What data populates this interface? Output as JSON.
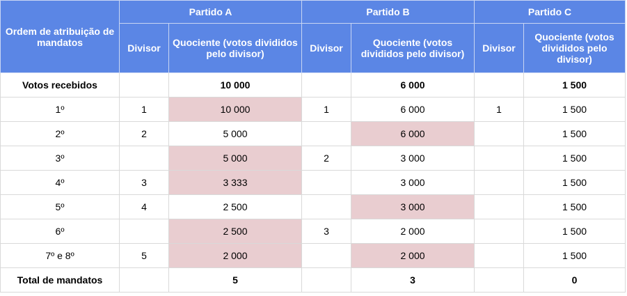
{
  "header": {
    "order_col": "Ordem de atribuição de mandatos",
    "party_a": "Partido A",
    "party_b": "Partido B",
    "party_c": "Partido C",
    "divisor_a": "Divisor",
    "divisor_b": "Divisor",
    "divisor_c": "Divisor",
    "quotient_a": "Quociente (votos divididos pelo divisor)",
    "quotient_b": "Quociente (votos divididos pelo divisor)",
    "quotient_c": "Quociente (votos divididos pelo divisor)"
  },
  "votes_row": {
    "label": "Votos recebidos",
    "a": "10 000",
    "b": "6 000",
    "c": "1 500"
  },
  "rows": [
    {
      "order": "1º",
      "div_a": "1",
      "q_a": "10 000",
      "div_b": "1",
      "q_b": "6 000",
      "div_c": "1",
      "q_c": "1 500"
    },
    {
      "order": "2º",
      "div_a": "2",
      "q_a": "5 000",
      "div_b": "",
      "q_b": "6 000",
      "div_c": "",
      "q_c": "1 500"
    },
    {
      "order": "3º",
      "div_a": "",
      "q_a": "5 000",
      "div_b": "2",
      "q_b": "3 000",
      "div_c": "",
      "q_c": "1 500"
    },
    {
      "order": "4º",
      "div_a": "3",
      "q_a": "3 333",
      "div_b": "",
      "q_b": "3 000",
      "div_c": "",
      "q_c": "1 500"
    },
    {
      "order": "5º",
      "div_a": "4",
      "q_a": "2 500",
      "div_b": "",
      "q_b": "3 000",
      "div_c": "",
      "q_c": "1 500"
    },
    {
      "order": "6º",
      "div_a": "",
      "q_a": "2 500",
      "div_b": "3",
      "q_b": "2 000",
      "div_c": "",
      "q_c": "1 500"
    },
    {
      "order": "7º e 8º",
      "div_a": "5",
      "q_a": "2 000",
      "div_b": "",
      "q_b": "2 000",
      "div_c": "",
      "q_c": "1 500"
    }
  ],
  "total_row": {
    "label": "Total de mandatos",
    "a": "5",
    "b": "3",
    "c": "0"
  },
  "colors": {
    "header_bg": "#5b86e5",
    "header_text": "#ffffff",
    "highlight": "#e9cdd0",
    "border": "#d9d9d9"
  }
}
